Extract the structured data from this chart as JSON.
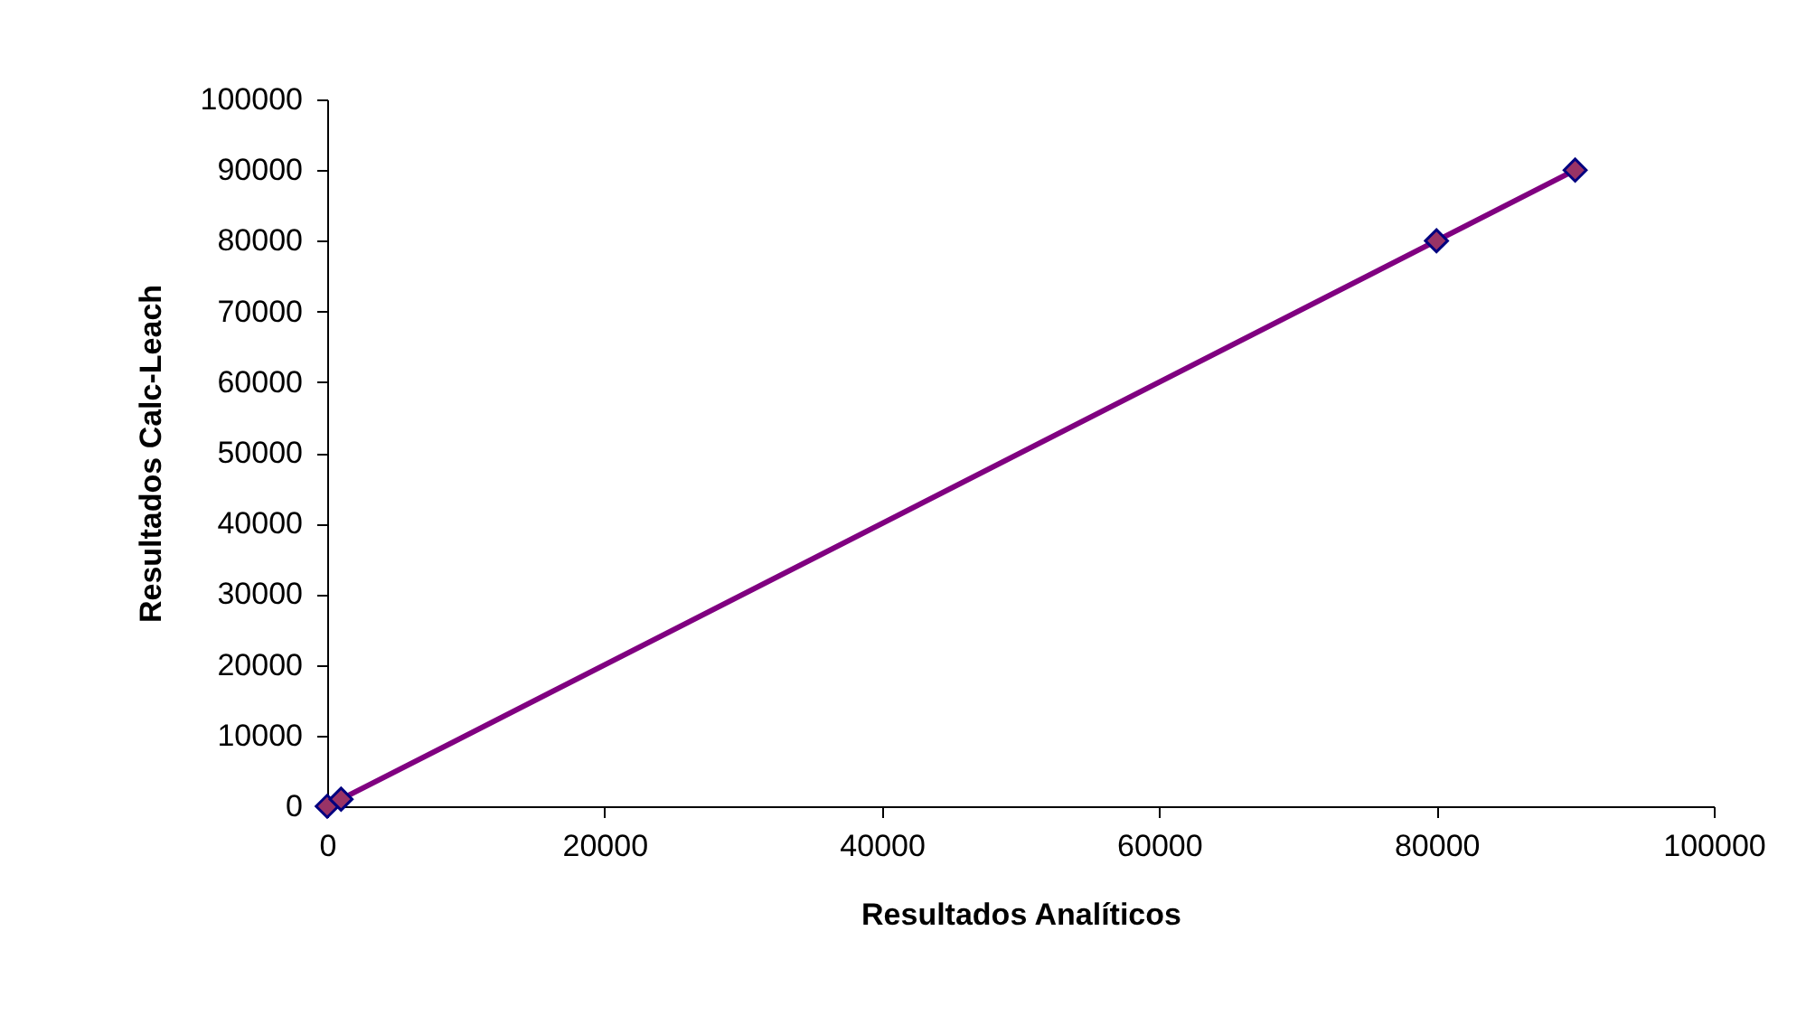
{
  "chart_data": {
    "type": "scatter",
    "xlabel": "Resultados Analíticos",
    "ylabel": "Resultados Calc-Leach",
    "xlim": [
      0,
      100000
    ],
    "xticks": [
      0,
      20000,
      40000,
      60000,
      80000,
      100000
    ],
    "ylim": [
      0,
      100000
    ],
    "yticks": [
      0,
      10000,
      20000,
      30000,
      40000,
      50000,
      60000,
      70000,
      80000,
      90000,
      100000
    ],
    "grid": false,
    "series": [
      {
        "type": "line",
        "color": "#800080",
        "marker": "none",
        "x": [
          0,
          1000,
          80000,
          90000
        ],
        "values": [
          0,
          1000,
          80000,
          90000
        ]
      },
      {
        "color": "#993366",
        "marker": "diamond",
        "x": [
          0,
          1000,
          80000,
          90000
        ],
        "values": [
          0,
          1000,
          80000,
          90000
        ]
      }
    ]
  }
}
